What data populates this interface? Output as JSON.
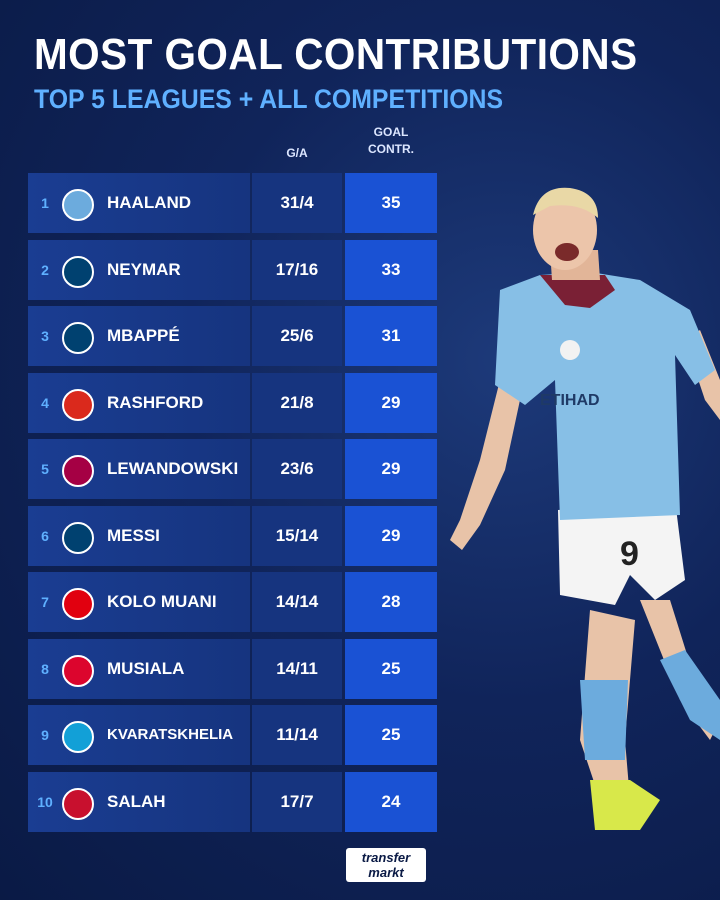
{
  "header": {
    "title": "MOST GOAL CONTRIBUTIONS",
    "subtitle": "TOP 5 LEAGUES + ALL COMPETITIONS"
  },
  "columns": {
    "ga": "G/A",
    "gc_line1": "GOAL",
    "gc_line2": "CONTR."
  },
  "rows": [
    {
      "rank": "1",
      "name": "HAALAND",
      "ga": "31/4",
      "gc": "35",
      "club_icon": "man-city-crest-icon",
      "club_color": "#6cabdd"
    },
    {
      "rank": "2",
      "name": "NEYMAR",
      "ga": "17/16",
      "gc": "33",
      "club_icon": "psg-crest-icon",
      "club_color": "#004170"
    },
    {
      "rank": "3",
      "name": "MBAPPÉ",
      "ga": "25/6",
      "gc": "31",
      "club_icon": "psg-crest-icon",
      "club_color": "#004170"
    },
    {
      "rank": "4",
      "name": "RASHFORD",
      "ga": "21/8",
      "gc": "29",
      "club_icon": "man-united-crest-icon",
      "club_color": "#da291c"
    },
    {
      "rank": "5",
      "name": "LEWANDOWSKI",
      "ga": "23/6",
      "gc": "29",
      "club_icon": "barcelona-crest-icon",
      "club_color": "#a50044"
    },
    {
      "rank": "6",
      "name": "MESSI",
      "ga": "15/14",
      "gc": "29",
      "club_icon": "psg-crest-icon",
      "club_color": "#004170"
    },
    {
      "rank": "7",
      "name": "KOLO MUANI",
      "ga": "14/14",
      "gc": "28",
      "club_icon": "eintracht-frankfurt-crest-icon",
      "club_color": "#e1000f"
    },
    {
      "rank": "8",
      "name": "MUSIALA",
      "ga": "14/11",
      "gc": "25",
      "club_icon": "bayern-crest-icon",
      "club_color": "#dc052d"
    },
    {
      "rank": "9",
      "name": "KVARATSKHELIA",
      "ga": "11/14",
      "gc": "25",
      "club_icon": "napoli-crest-icon",
      "club_color": "#12a0d7"
    },
    {
      "rank": "10",
      "name": "SALAH",
      "ga": "17/7",
      "gc": "24",
      "club_icon": "liverpool-crest-icon",
      "club_color": "#c8102e"
    }
  ],
  "footer": {
    "logo_line1": "transfer",
    "logo_line2": "markt"
  },
  "colors": {
    "background": "#10245a",
    "accent": "#5fb0ff",
    "contribution_cell": "#1a52d4"
  }
}
